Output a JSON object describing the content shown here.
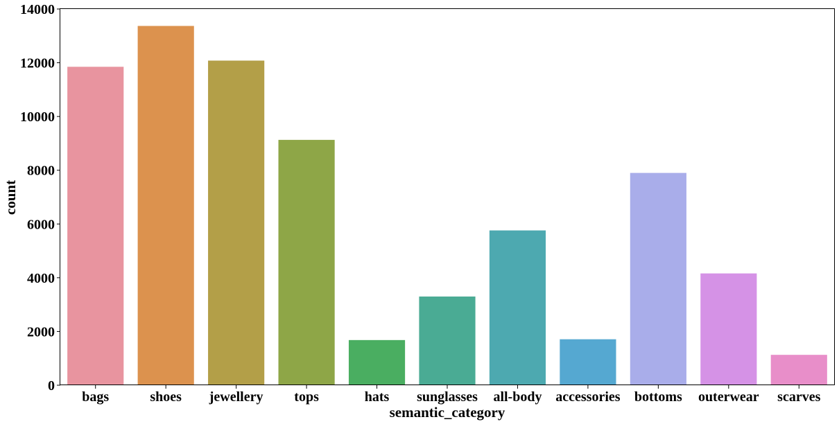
{
  "chart_data": {
    "type": "bar",
    "title": "",
    "xlabel": "semantic_category",
    "ylabel": "count",
    "ylim": [
      0,
      14000
    ],
    "yticks": [
      0,
      2000,
      4000,
      6000,
      8000,
      10000,
      12000,
      14000
    ],
    "grid": false,
    "categories": [
      "bags",
      "shoes",
      "jewellery",
      "tops",
      "hats",
      "sunglasses",
      "all-body",
      "accessories",
      "bottoms",
      "outerwear",
      "scarves"
    ],
    "values": [
      11850,
      13370,
      12080,
      9130,
      1680,
      3300,
      5760,
      1710,
      7900,
      4160,
      1130
    ],
    "colors": [
      "#e8949f",
      "#dc924e",
      "#b39f48",
      "#8ea647",
      "#4aae61",
      "#4aab94",
      "#4da9b0",
      "#55a8d1",
      "#a9adea",
      "#d592e6",
      "#e88ec9"
    ]
  }
}
